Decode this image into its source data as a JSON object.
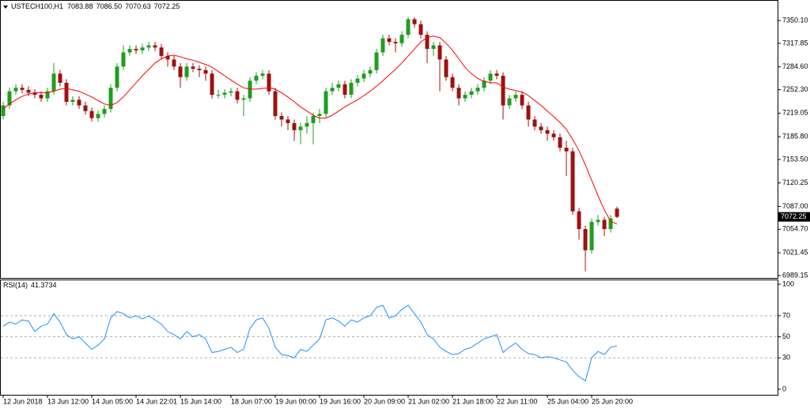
{
  "chart_data": [
    {
      "type": "candlestick",
      "title": "USTECH100,H1",
      "last_high_label": "7086.50",
      "up_color": "#1f9e1f",
      "down_color": "#9e1010",
      "open": [
        7215,
        7230,
        7250,
        7255,
        7252,
        7248,
        7245,
        7240,
        7250,
        7275,
        7262,
        7235,
        7238,
        7230,
        7222,
        7212,
        7218,
        7225,
        7255,
        7285,
        7305,
        7310,
        7308,
        7312,
        7315,
        7312,
        7300,
        7295,
        7285,
        7270,
        7285,
        7282,
        7280,
        7275,
        7245,
        7245,
        7248,
        7250,
        7238,
        7240,
        7265,
        7272,
        7275,
        7250,
        7215,
        7210,
        7205,
        7195,
        7200,
        7205,
        7215,
        7218,
        7250,
        7255,
        7260,
        7245,
        7262,
        7268,
        7275,
        7280,
        7305,
        7325,
        7320,
        7318,
        7330,
        7352,
        7345,
        7330,
        7310,
        7315,
        7295,
        7270,
        7255,
        7240,
        7245,
        7250,
        7255,
        7265,
        7275,
        7272,
        7230,
        7240,
        7245,
        7230,
        7210,
        7200,
        7195,
        7190,
        7185,
        7170,
        7165,
        7080,
        7055,
        7025,
        7065,
        7068,
        7055,
        7083.88
      ],
      "high": [
        7235,
        7255,
        7260,
        7260,
        7257,
        7253,
        7250,
        7255,
        7290,
        7280,
        7267,
        7243,
        7243,
        7235,
        7227,
        7223,
        7230,
        7260,
        7290,
        7315,
        7315,
        7315,
        7317,
        7320,
        7320,
        7317,
        7305,
        7300,
        7290,
        7290,
        7290,
        7287,
        7285,
        7280,
        7252,
        7253,
        7255,
        7255,
        7245,
        7270,
        7277,
        7280,
        7280,
        7255,
        7220,
        7215,
        7210,
        7205,
        7215,
        7220,
        7225,
        7255,
        7262,
        7265,
        7265,
        7267,
        7273,
        7280,
        7285,
        7310,
        7330,
        7330,
        7325,
        7335,
        7355,
        7355,
        7350,
        7335,
        7320,
        7320,
        7300,
        7275,
        7260,
        7250,
        7255,
        7260,
        7270,
        7280,
        7280,
        7277,
        7245,
        7250,
        7250,
        7235,
        7215,
        7205,
        7200,
        7195,
        7190,
        7180,
        7170,
        7085,
        7060,
        7070,
        7075,
        7072,
        7075,
        7086.5
      ],
      "low": [
        7210,
        7225,
        7245,
        7247,
        7243,
        7240,
        7235,
        7235,
        7245,
        7257,
        7230,
        7230,
        7225,
        7217,
        7207,
        7207,
        7213,
        7220,
        7250,
        7280,
        7300,
        7303,
        7303,
        7307,
        7307,
        7295,
        7285,
        7280,
        7255,
        7265,
        7277,
        7270,
        7265,
        7240,
        7240,
        7240,
        7243,
        7233,
        7215,
        7235,
        7260,
        7267,
        7245,
        7210,
        7200,
        7195,
        7180,
        7175,
        7190,
        7175,
        7205,
        7213,
        7245,
        7250,
        7240,
        7240,
        7257,
        7263,
        7270,
        7275,
        7300,
        7315,
        7305,
        7313,
        7325,
        7340,
        7325,
        7290,
        7300,
        7250,
        7265,
        7250,
        7230,
        7235,
        7240,
        7245,
        7250,
        7260,
        7267,
        7210,
        7225,
        7235,
        7225,
        7200,
        7195,
        7190,
        7180,
        7180,
        7165,
        7130,
        7075,
        7040,
        6995,
        7020,
        7060,
        7045,
        7050,
        7070.63
      ],
      "close": [
        7230,
        7250,
        7255,
        7252,
        7248,
        7245,
        7240,
        7250,
        7275,
        7262,
        7235,
        7238,
        7230,
        7222,
        7212,
        7218,
        7225,
        7255,
        7285,
        7305,
        7310,
        7308,
        7312,
        7315,
        7312,
        7300,
        7295,
        7285,
        7270,
        7285,
        7282,
        7280,
        7275,
        7245,
        7245,
        7248,
        7250,
        7238,
        7240,
        7265,
        7272,
        7275,
        7250,
        7215,
        7210,
        7205,
        7195,
        7200,
        7205,
        7215,
        7218,
        7250,
        7255,
        7260,
        7245,
        7262,
        7268,
        7275,
        7280,
        7305,
        7325,
        7320,
        7318,
        7330,
        7352,
        7345,
        7330,
        7310,
        7315,
        7295,
        7270,
        7255,
        7240,
        7245,
        7250,
        7255,
        7265,
        7275,
        7272,
        7230,
        7240,
        7245,
        7230,
        7210,
        7200,
        7195,
        7190,
        7185,
        7170,
        7165,
        7080,
        7055,
        7025,
        7065,
        7068,
        7055,
        7070,
        7072.25
      ],
      "overlays": [
        {
          "color": "#ff0000",
          "values": [
            7225,
            7232,
            7238,
            7243,
            7246,
            7248,
            7248,
            7248,
            7250,
            7253,
            7254,
            7252,
            7250,
            7246,
            7242,
            7237,
            7232,
            7230,
            7234,
            7242,
            7252,
            7262,
            7272,
            7281,
            7290,
            7296,
            7300,
            7301,
            7299,
            7296,
            7294,
            7291,
            7288,
            7284,
            7278,
            7272,
            7266,
            7260,
            7255,
            7253,
            7253,
            7254,
            7255,
            7253,
            7248,
            7242,
            7235,
            7228,
            7222,
            7216,
            7212,
            7212,
            7216,
            7222,
            7228,
            7233,
            7238,
            7244,
            7250,
            7257,
            7265,
            7273,
            7281,
            7290,
            7300,
            7310,
            7320,
            7326,
            7328,
            7326,
            7318,
            7308,
            7296,
            7284,
            7275,
            7268,
            7264,
            7262,
            7262,
            7256,
            7253,
            7251,
            7249,
            7244,
            7237,
            7230,
            7222,
            7214,
            7206,
            7196,
            7182,
            7166,
            7146,
            7124,
            7102,
            7082,
            7066,
            7062
          ]
        }
      ],
      "xlim": [
        -0.5,
        122.375
      ],
      "ylim": [
        6985.8,
        7377
      ],
      "yticks": [
        {
          "value": 7350.1,
          "label": "7350.10"
        },
        7317.85,
        {
          "value": 7284.6,
          "label": "7284.60"
        },
        {
          "value": 7252.3,
          "label": "7252.30"
        },
        7219.05,
        {
          "value": 7185.8,
          "label": "7185.80"
        },
        {
          "value": 7153.5,
          "label": "7153.50"
        },
        7120.25,
        {
          "value": 7087,
          "label": "7087.00"
        },
        {
          "value": 7054.7,
          "label": "7054.70"
        },
        7021.45,
        6989.15
      ]
    },
    {
      "type": "line",
      "title": "RSI(14)",
      "color": "#1e90ff",
      "values": [
        60,
        64,
        62,
        66,
        65,
        55,
        60,
        62,
        72,
        64,
        52,
        48,
        50,
        44,
        38,
        42,
        48,
        68,
        74,
        72,
        68,
        70,
        67,
        70,
        66,
        62,
        55,
        52,
        48,
        55,
        50,
        52,
        48,
        35,
        36,
        38,
        40,
        35,
        38,
        58,
        66,
        68,
        58,
        40,
        33,
        32,
        30,
        38,
        36,
        42,
        48,
        66,
        68,
        65,
        60,
        66,
        64,
        68,
        70,
        78,
        80,
        68,
        70,
        76,
        80,
        72,
        64,
        52,
        48,
        40,
        36,
        33,
        34,
        38,
        40,
        44,
        48,
        50,
        52,
        35,
        40,
        44,
        38,
        34,
        33,
        30,
        31,
        30,
        28,
        26,
        18,
        12,
        8,
        30,
        36,
        33,
        40,
        41.3734
      ],
      "xlim": [
        -0.5,
        122.375
      ],
      "ylim": [
        0,
        100
      ],
      "yticks": [
        100,
        70,
        50,
        30,
        0
      ],
      "xticks": [
        {
          "value": 0,
          "label": "12 Jun 2018"
        },
        {
          "value": 7,
          "label": "13 Jun 12:00"
        },
        {
          "value": 14,
          "label": "14 Jun 05:00"
        },
        {
          "value": 21,
          "label": "14 Jun 22:01"
        },
        {
          "value": 28,
          "label": "15 Jun 14:00"
        },
        {
          "value": 36,
          "label": "18 Jun 07:00"
        },
        {
          "value": 43,
          "label": "19 Jun 00:00"
        },
        {
          "value": 50,
          "label": "19 Jun 16:00"
        },
        {
          "value": 57,
          "label": "20 Jun 09:00"
        },
        {
          "value": 64,
          "label": "21 Jun 02:00"
        },
        {
          "value": 71,
          "label": "21 Jun 18:00"
        },
        {
          "value": 78,
          "label": "22 Jun 11:00"
        },
        {
          "value": 86,
          "label": "25 Jun 04:00"
        },
        {
          "value": 93,
          "label": "25 Jun 20:00"
        }
      ]
    }
  ]
}
